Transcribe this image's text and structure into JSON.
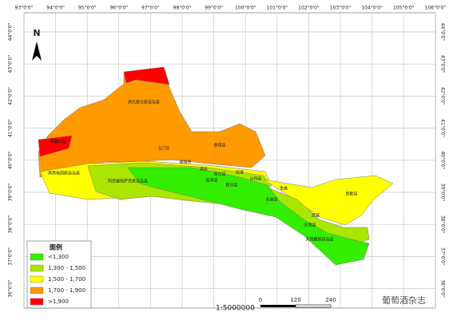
{
  "map": {
    "north": "N",
    "longitude_labels": [
      "93°0'0\"",
      "94°0'0\"",
      "95°0'0\"",
      "96°0'0\"",
      "97°0'0\"",
      "98°0'0\"",
      "99°0'0\"",
      "100°0'0\"",
      "101°0'0\"",
      "102°0'0\"",
      "103°0'0\"",
      "104°0'0\"",
      "105°0'0\"",
      "106°0'0\""
    ],
    "latitude_labels": [
      "44°0'0\"",
      "43°0'0\"",
      "42°0'0\"",
      "41°0'0\"",
      "40°0'0\"",
      "39°0'0\"",
      "38°0'0\"",
      "37°0'0\"",
      "36°0'0\""
    ],
    "places": [
      "肃北蒙古族自治县",
      "瓜州县",
      "玉门市",
      "金塔县",
      "嘉峪关",
      "酒泉",
      "肃南裕固族自治县",
      "高台县",
      "临泽县",
      "张掖",
      "山丹县",
      "民乐县",
      "永昌县",
      "金昌",
      "民勤县",
      "武威",
      "古浪县",
      "天祝藏族自治县",
      "阿克塞哈萨克族自治县",
      "敦煌"
    ],
    "legend": {
      "title": "图例",
      "items": [
        {
          "label": "<1,300",
          "color": "#33ee00"
        },
        {
          "label": "1,300 - 1,500",
          "color": "#aae600"
        },
        {
          "label": "1,500 - 1,700",
          "color": "#ffff00"
        },
        {
          "label": "1,700 - 1,900",
          "color": "#ff9a00"
        },
        {
          "label": ">1,900",
          "color": "#ff0000"
        }
      ]
    },
    "scale_text": "1:5000000",
    "scale_bar": [
      "0",
      "120",
      "240"
    ],
    "watermark": "葡萄酒杂志"
  }
}
